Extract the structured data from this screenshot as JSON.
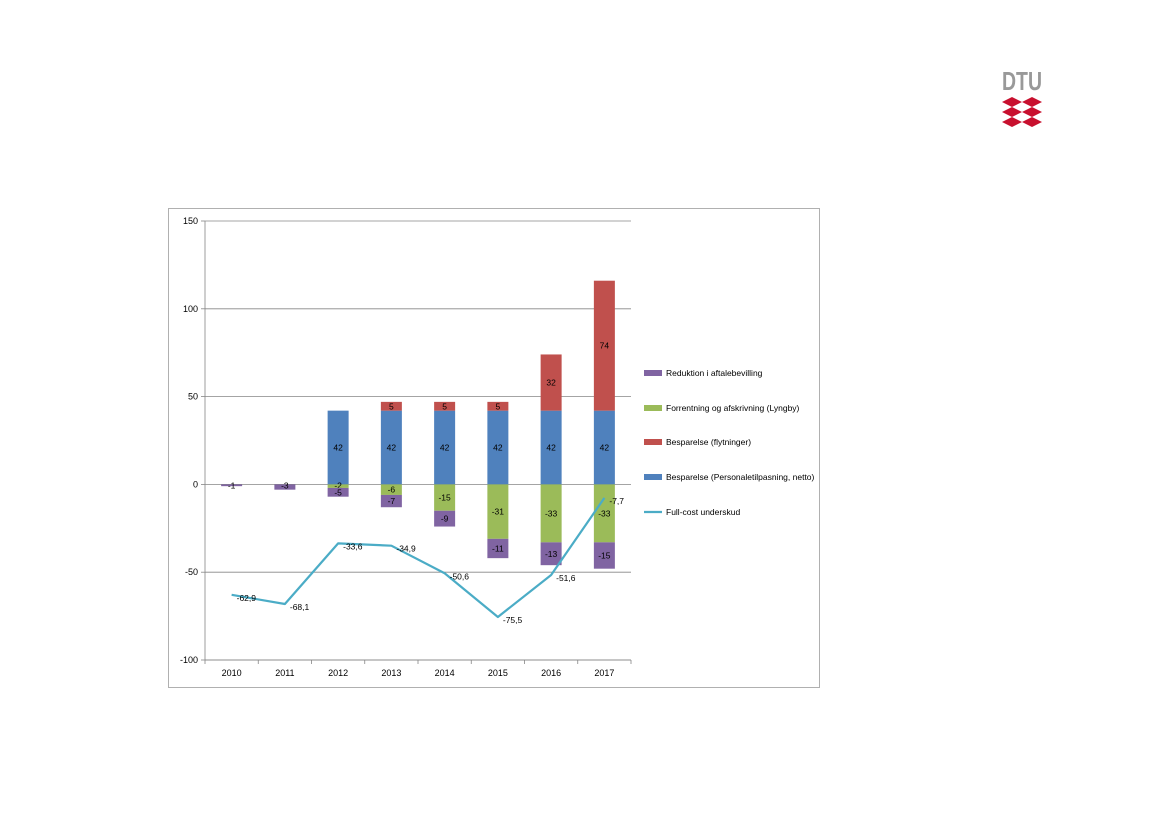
{
  "logo": {
    "text": "DTU",
    "colors": {
      "text": "#999999",
      "waves": "#c8102e"
    }
  },
  "chart_data": {
    "type": "bar",
    "stacked": true,
    "categories": [
      "2010",
      "2011",
      "2012",
      "2013",
      "2014",
      "2015",
      "2016",
      "2017"
    ],
    "ylim": [
      -100,
      150
    ],
    "yticks": [
      "150",
      "100",
      "50",
      "0",
      "-50",
      "-100"
    ],
    "grid": true,
    "legend_position": "right",
    "series": [
      {
        "name": "Reduktion i aftalebevilling",
        "color": "#8064a2",
        "stack": "negative",
        "values": [
          -1,
          -3,
          -5,
          -7,
          -9,
          -11,
          -13,
          -15
        ],
        "labels": [
          "-1",
          "-3",
          "-5",
          "-7",
          "-9",
          "-11",
          "-13",
          "-15"
        ]
      },
      {
        "name": "Forrentning og afskrivning (Lyngby)",
        "color": "#9bbb59",
        "stack": "negative",
        "values": [
          0,
          0,
          -2,
          -6,
          -15,
          -31,
          -33,
          -33
        ],
        "labels": [
          "",
          "",
          "-2",
          "-6",
          "-15",
          "-31",
          "-33",
          "-33"
        ]
      },
      {
        "name": "Besparelse (flytninger)",
        "color": "#c0504d",
        "stack": "positive",
        "values": [
          0,
          0,
          0,
          5,
          5,
          5,
          32,
          74
        ],
        "labels": [
          "",
          "",
          "",
          "5",
          "5",
          "5",
          "32",
          "74"
        ]
      },
      {
        "name": "Besparelse (Personaletilpasning, netto)",
        "color": "#4f81bd",
        "stack": "positive",
        "values": [
          0,
          0,
          42,
          42,
          42,
          42,
          42,
          42
        ],
        "labels": [
          "",
          "",
          "42",
          "42",
          "42",
          "42",
          "42",
          "42"
        ]
      },
      {
        "name": "Full-cost underskud",
        "color": "#4bacc6",
        "type": "line",
        "values": [
          -62.9,
          -68.1,
          -33.6,
          -34.9,
          -50.6,
          -75.5,
          -51.6,
          -7.7
        ],
        "labels": [
          "-62,9",
          "-68,1",
          "-33,6",
          "-34,9",
          "-50,6",
          "-75,5",
          "-51,6",
          "-7,7"
        ]
      }
    ],
    "legend_order": [
      "Reduktion i aftalebevilling",
      "Forrentning og afskrivning (Lyngby)",
      "Besparelse (flytninger)",
      "Besparelse (Personaletilpasning, netto)",
      "Full-cost underskud"
    ]
  }
}
